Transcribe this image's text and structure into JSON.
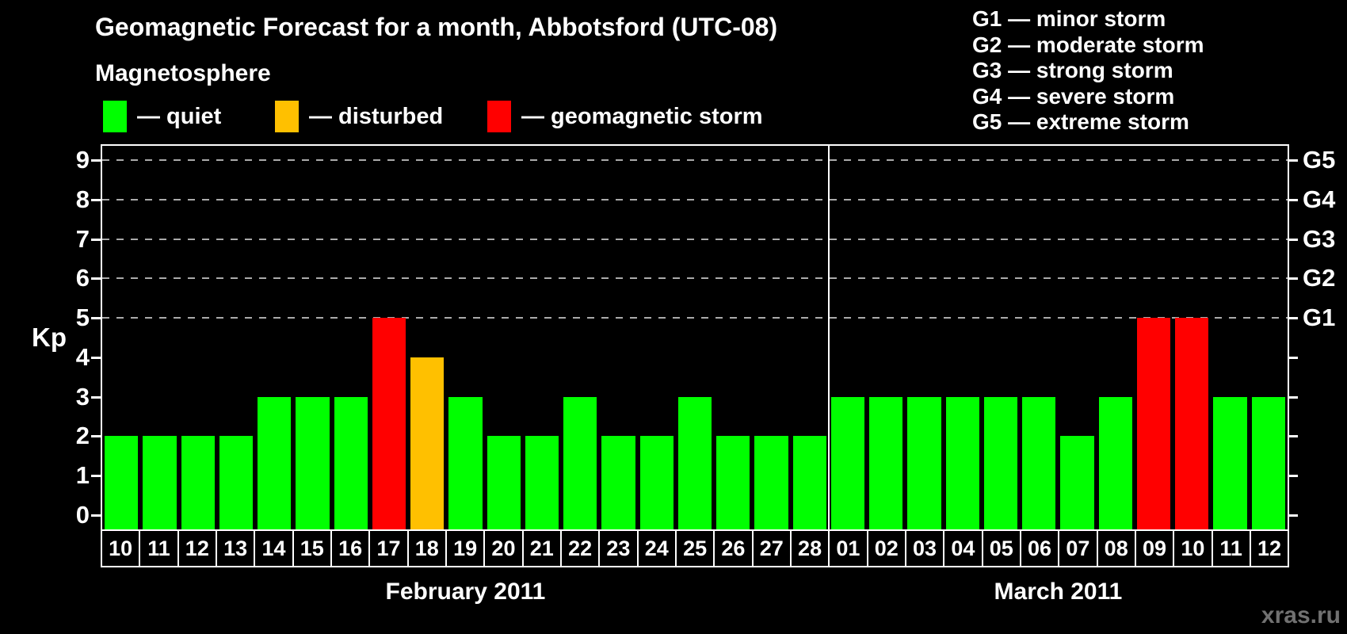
{
  "title": "Geomagnetic Forecast for a month, Abbotsford (UTC-08)",
  "subtitle": "Magnetosphere",
  "legend": {
    "items": [
      {
        "status": "quiet",
        "label": "— quiet"
      },
      {
        "status": "disturbed",
        "label": "— disturbed"
      },
      {
        "status": "storm",
        "label": "— geomagnetic storm"
      }
    ]
  },
  "g_legend": [
    "G1 — minor storm",
    "G2 — moderate storm",
    "G3 — strong storm",
    "G4 — severe storm",
    "G5 — extreme storm"
  ],
  "colors": {
    "quiet": "#00FF00",
    "disturbed": "#FFC000",
    "storm": "#FF0000",
    "grid": "#AAAAAA",
    "axis": "#FFFFFF",
    "background": "#000000"
  },
  "watermark": "xras.ru",
  "chart_data": {
    "type": "bar",
    "title": "Geomagnetic Forecast for a month, Abbotsford (UTC-08)",
    "ylabel": "Kp",
    "ylim": [
      0,
      9
    ],
    "yticks": [
      0,
      1,
      2,
      3,
      4,
      5,
      6,
      7,
      8,
      9
    ],
    "gridlines_at": [
      5,
      6,
      7,
      8,
      9
    ],
    "grid": "dashed",
    "right_axis_labels": [
      {
        "label": "G1",
        "value": 5
      },
      {
        "label": "G2",
        "value": 6
      },
      {
        "label": "G3",
        "value": 7
      },
      {
        "label": "G4",
        "value": 8
      },
      {
        "label": "G5",
        "value": 9
      }
    ],
    "months": [
      {
        "label": "February 2011",
        "bars": [
          {
            "day": "10",
            "kp": 2,
            "status": "quiet"
          },
          {
            "day": "11",
            "kp": 2,
            "status": "quiet"
          },
          {
            "day": "12",
            "kp": 2,
            "status": "quiet"
          },
          {
            "day": "13",
            "kp": 2,
            "status": "quiet"
          },
          {
            "day": "14",
            "kp": 3,
            "status": "quiet"
          },
          {
            "day": "15",
            "kp": 3,
            "status": "quiet"
          },
          {
            "day": "16",
            "kp": 3,
            "status": "quiet"
          },
          {
            "day": "17",
            "kp": 5,
            "status": "storm"
          },
          {
            "day": "18",
            "kp": 4,
            "status": "disturbed"
          },
          {
            "day": "19",
            "kp": 3,
            "status": "quiet"
          },
          {
            "day": "20",
            "kp": 2,
            "status": "quiet"
          },
          {
            "day": "21",
            "kp": 2,
            "status": "quiet"
          },
          {
            "day": "22",
            "kp": 3,
            "status": "quiet"
          },
          {
            "day": "23",
            "kp": 2,
            "status": "quiet"
          },
          {
            "day": "24",
            "kp": 2,
            "status": "quiet"
          },
          {
            "day": "25",
            "kp": 3,
            "status": "quiet"
          },
          {
            "day": "26",
            "kp": 2,
            "status": "quiet"
          },
          {
            "day": "27",
            "kp": 2,
            "status": "quiet"
          },
          {
            "day": "28",
            "kp": 2,
            "status": "quiet"
          }
        ]
      },
      {
        "label": "March 2011",
        "bars": [
          {
            "day": "01",
            "kp": 3,
            "status": "quiet"
          },
          {
            "day": "02",
            "kp": 3,
            "status": "quiet"
          },
          {
            "day": "03",
            "kp": 3,
            "status": "quiet"
          },
          {
            "day": "04",
            "kp": 3,
            "status": "quiet"
          },
          {
            "day": "05",
            "kp": 3,
            "status": "quiet"
          },
          {
            "day": "06",
            "kp": 3,
            "status": "quiet"
          },
          {
            "day": "07",
            "kp": 2,
            "status": "quiet"
          },
          {
            "day": "08",
            "kp": 3,
            "status": "quiet"
          },
          {
            "day": "09",
            "kp": 5,
            "status": "storm"
          },
          {
            "day": "10",
            "kp": 5,
            "status": "storm"
          },
          {
            "day": "11",
            "kp": 3,
            "status": "quiet"
          },
          {
            "day": "12",
            "kp": 3,
            "status": "quiet"
          }
        ]
      }
    ]
  }
}
